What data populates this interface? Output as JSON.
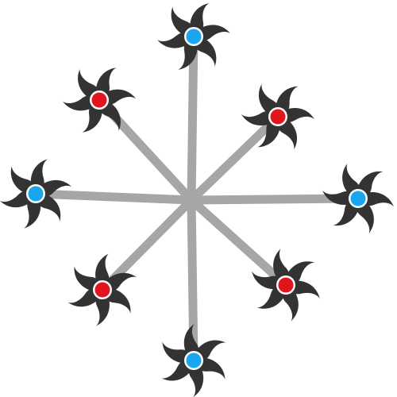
{
  "colors": {
    "background": "#ffffff",
    "arm": "#a6a6a6",
    "blade": "#333333",
    "hub_ring": "#ffffff",
    "hub_blue": "#1aa6ef",
    "hub_red": "#e0161c"
  },
  "rotors": [
    {
      "direction": "top",
      "hub_color": "blue"
    },
    {
      "direction": "top-right",
      "hub_color": "red"
    },
    {
      "direction": "right",
      "hub_color": "blue"
    },
    {
      "direction": "bottom-right",
      "hub_color": "red"
    },
    {
      "direction": "bottom",
      "hub_color": "blue"
    },
    {
      "direction": "bottom-left",
      "hub_color": "red"
    },
    {
      "direction": "left",
      "hub_color": "blue"
    },
    {
      "direction": "top-left",
      "hub_color": "red"
    }
  ]
}
